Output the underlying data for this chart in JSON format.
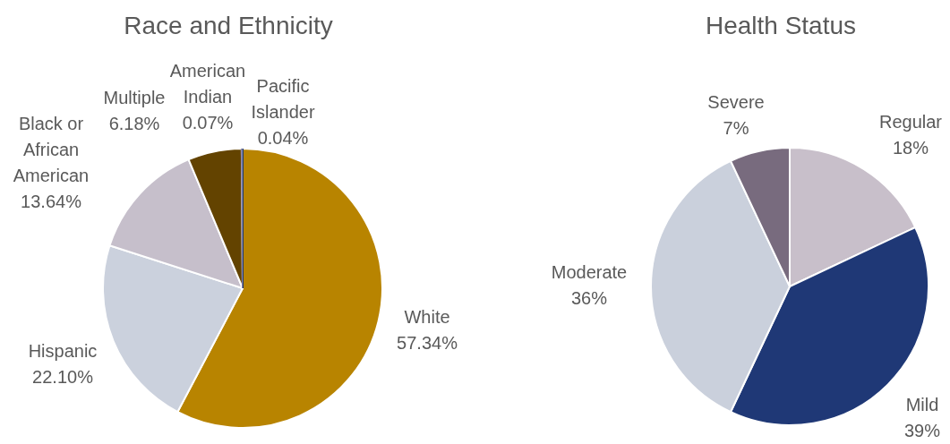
{
  "chart_data": [
    {
      "type": "pie",
      "title": "Race and Ethnicity",
      "categories": [
        "White",
        "Hispanic",
        "Black or African American",
        "Multiple",
        "American Indian",
        "Pacific Islander"
      ],
      "values": [
        57.34,
        22.1,
        13.64,
        6.18,
        0.07,
        0.04
      ],
      "value_labels": [
        "57.34%",
        "22.10%",
        "13.64%",
        "6.18%",
        "0.07%",
        "0.04%"
      ],
      "colors": [
        "#b88400",
        "#cbd1dd",
        "#c6bfcb",
        "#634300",
        "#8b85a8",
        "#1f3a74"
      ]
    },
    {
      "type": "pie",
      "title": "Health Status",
      "categories": [
        "Regular",
        "Mild",
        "Moderate",
        "Severe"
      ],
      "values": [
        18,
        39,
        36,
        7
      ],
      "value_labels": [
        "18%",
        "39%",
        "36%",
        "7%"
      ],
      "colors": [
        "#c8bfca",
        "#1f3876",
        "#cad0dc",
        "#786b7e"
      ]
    }
  ]
}
